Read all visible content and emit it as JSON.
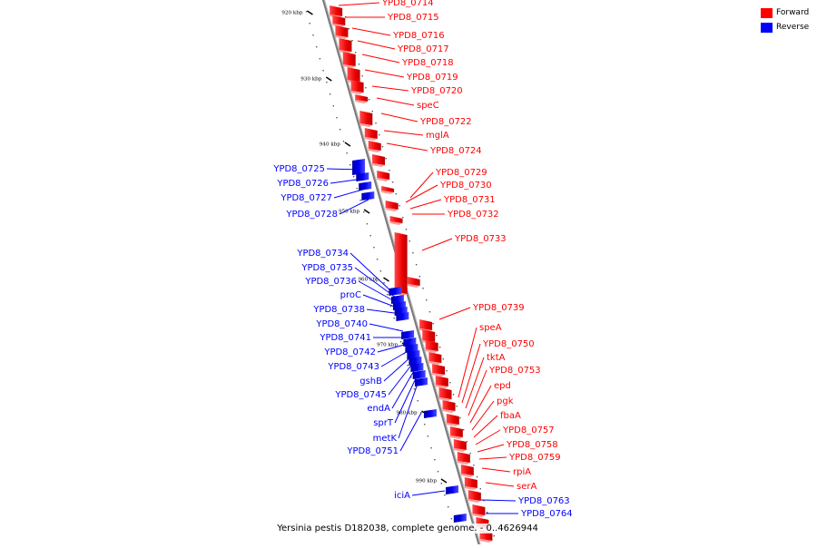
{
  "legend": {
    "forward": {
      "label": "Forward",
      "color": "#ff0000"
    },
    "reverse": {
      "label": "Reverse",
      "color": "#0000ff"
    }
  },
  "colors": {
    "forward": "#ff0000",
    "reverse": "#0000ff",
    "backbone": "#888888"
  },
  "caption": "Yersinia pestis D182038, complete genome. - 0..4626944",
  "ticks": [
    "920 kbp",
    "930 kbp",
    "940 kbp",
    "950 kbp",
    "960 kbp",
    "970 kbp",
    "980 kbp",
    "990 kbp"
  ],
  "forward_genes": [
    "YPD8_0714",
    "YPD8_0715",
    "YPD8_0716",
    "YPD8_0717",
    "YPD8_0718",
    "YPD8_0719",
    "YPD8_0720",
    "speC",
    "YPD8_0722",
    "mglA",
    "YPD8_0724",
    "YPD8_0729",
    "YPD8_0730",
    "YPD8_0731",
    "YPD8_0732",
    "YPD8_0733",
    "YPD8_0739",
    "speA",
    "YPD8_0750",
    "tktA",
    "YPD8_0753",
    "epd",
    "pgk",
    "fbaA",
    "YPD8_0757",
    "YPD8_0758",
    "YPD8_0759",
    "rpiA",
    "serA"
  ],
  "reverse_genes": [
    "YPD8_0725",
    "YPD8_0726",
    "YPD8_0727",
    "YPD8_0728",
    "YPD8_0734",
    "YPD8_0735",
    "YPD8_0736",
    "proC",
    "YPD8_0738",
    "YPD8_0740",
    "YPD8_0741",
    "YPD8_0742",
    "YPD8_0743",
    "gshB",
    "YPD8_0745",
    "endA",
    "sprT",
    "metK",
    "YPD8_0751",
    "iciA",
    "YPD8_0763",
    "YPD8_0764"
  ]
}
